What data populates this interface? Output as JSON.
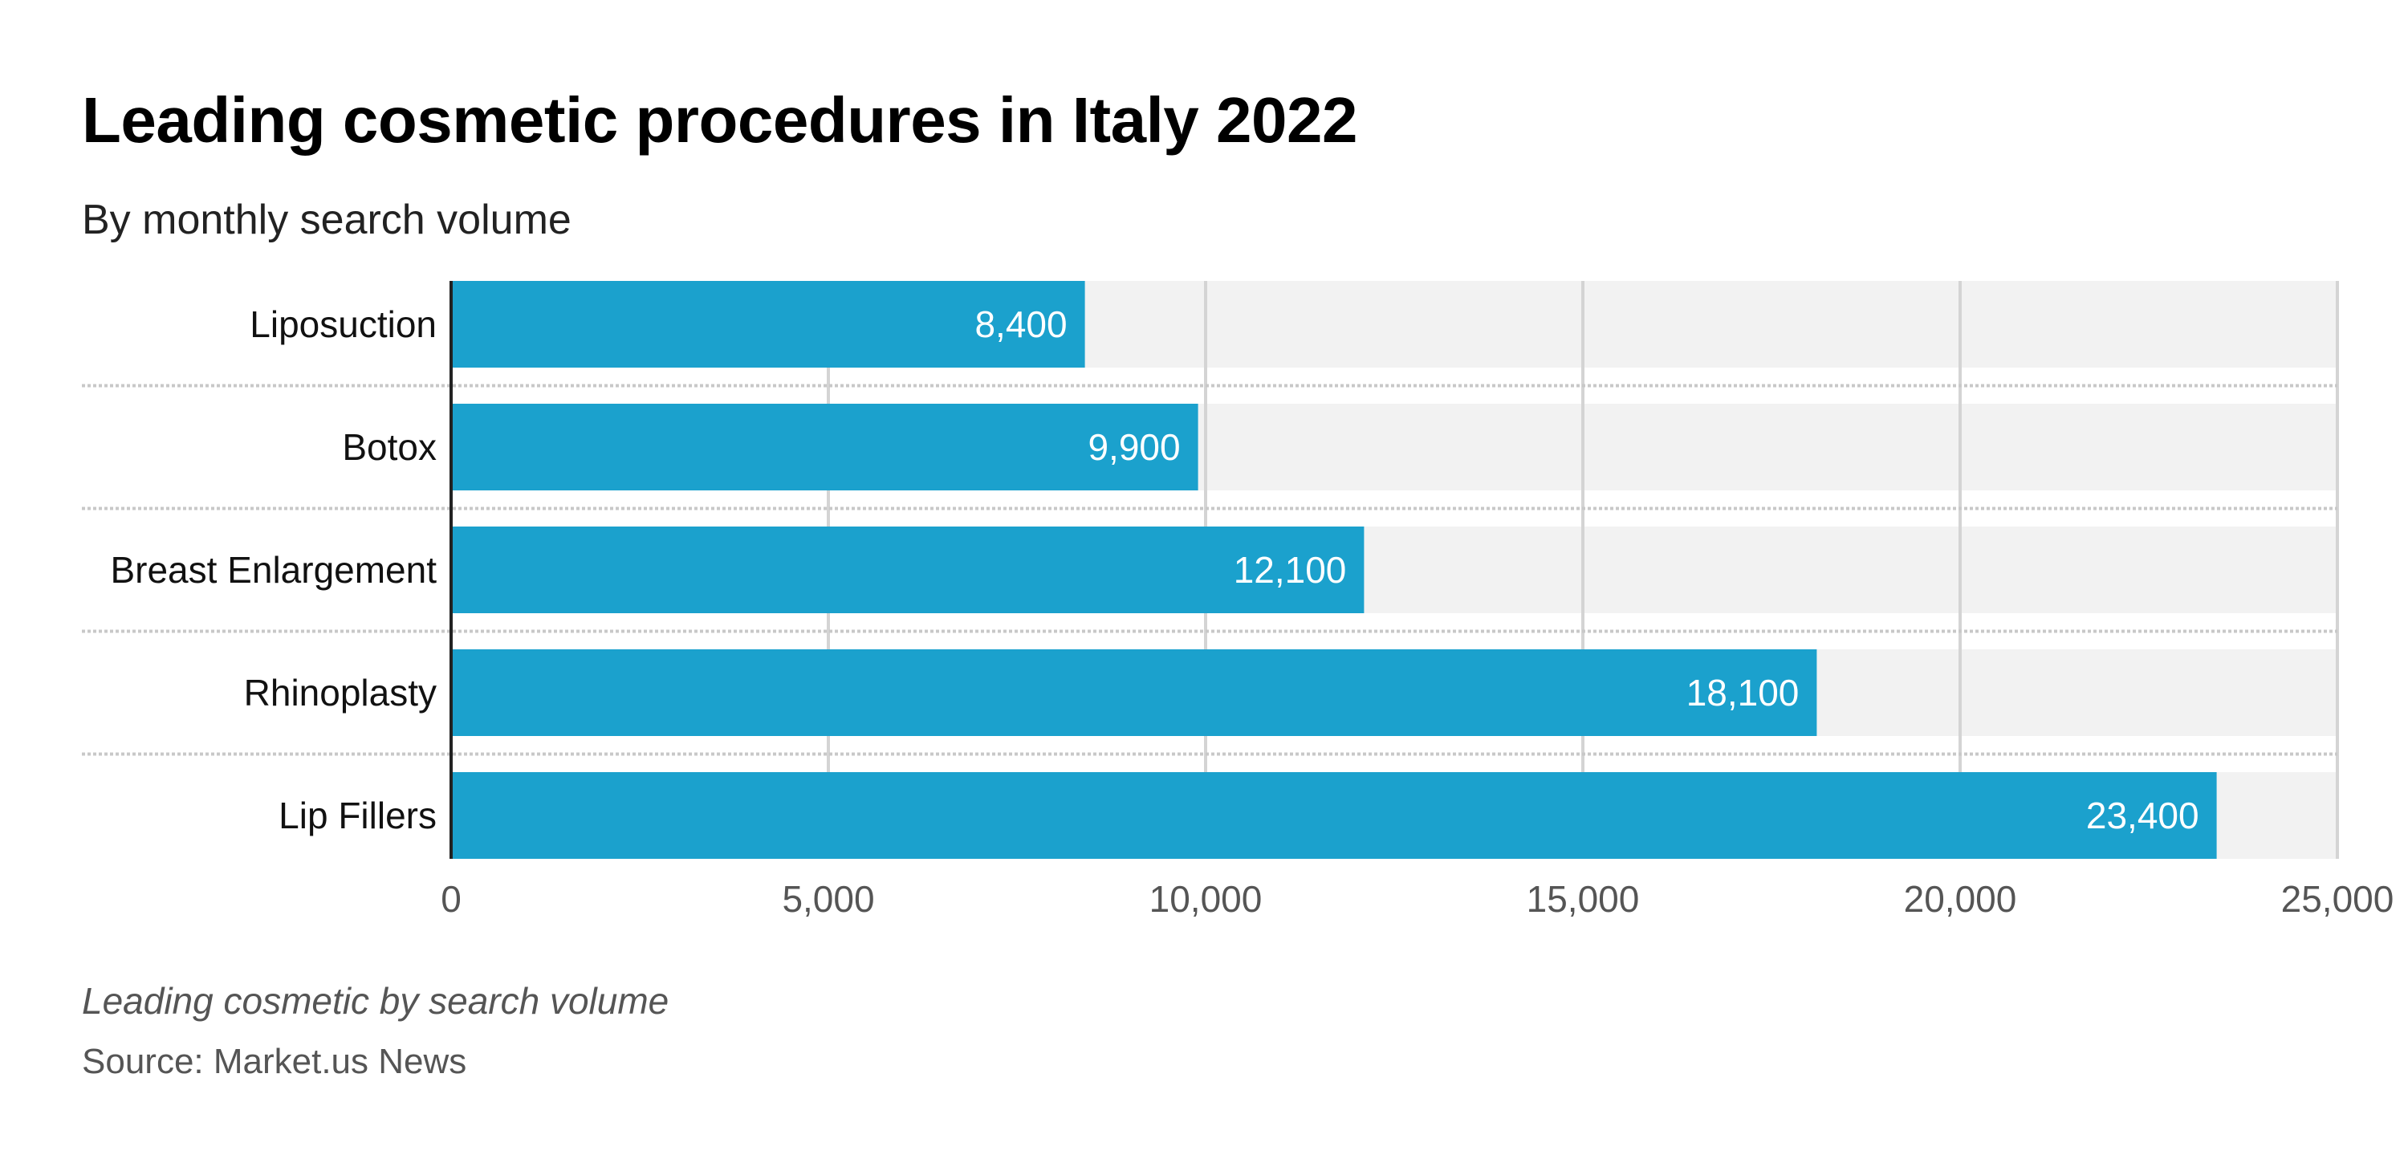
{
  "title": "Leading cosmetic procedures in Italy 2022",
  "subtitle": "By monthly search volume",
  "note": "Leading cosmetic by search volume",
  "source": "Source: Market.us News",
  "colors": {
    "bar": "#1ba1cd",
    "track": "#f2f2f2",
    "grid": "#d4d4d4",
    "axis": "#222222"
  },
  "chart_data": {
    "type": "bar",
    "orientation": "horizontal",
    "title": "Leading cosmetic procedures in Italy 2022",
    "subtitle": "By monthly search volume",
    "categories": [
      "Liposuction",
      "Botox",
      "Breast Enlargement",
      "Rhinoplasty",
      "Lip Fillers"
    ],
    "values": [
      8400,
      9900,
      12100,
      18100,
      23400
    ],
    "value_labels": [
      "8,400",
      "9,900",
      "12,100",
      "18,100",
      "23,400"
    ],
    "xlim": [
      0,
      25000
    ],
    "xticks": [
      0,
      5000,
      10000,
      15000,
      20000,
      25000
    ],
    "xtick_labels": [
      "0",
      "5,000",
      "10,000",
      "15,000",
      "20,000",
      "25,000"
    ],
    "xlabel": "",
    "ylabel": "",
    "grid": true,
    "legend": "none"
  }
}
